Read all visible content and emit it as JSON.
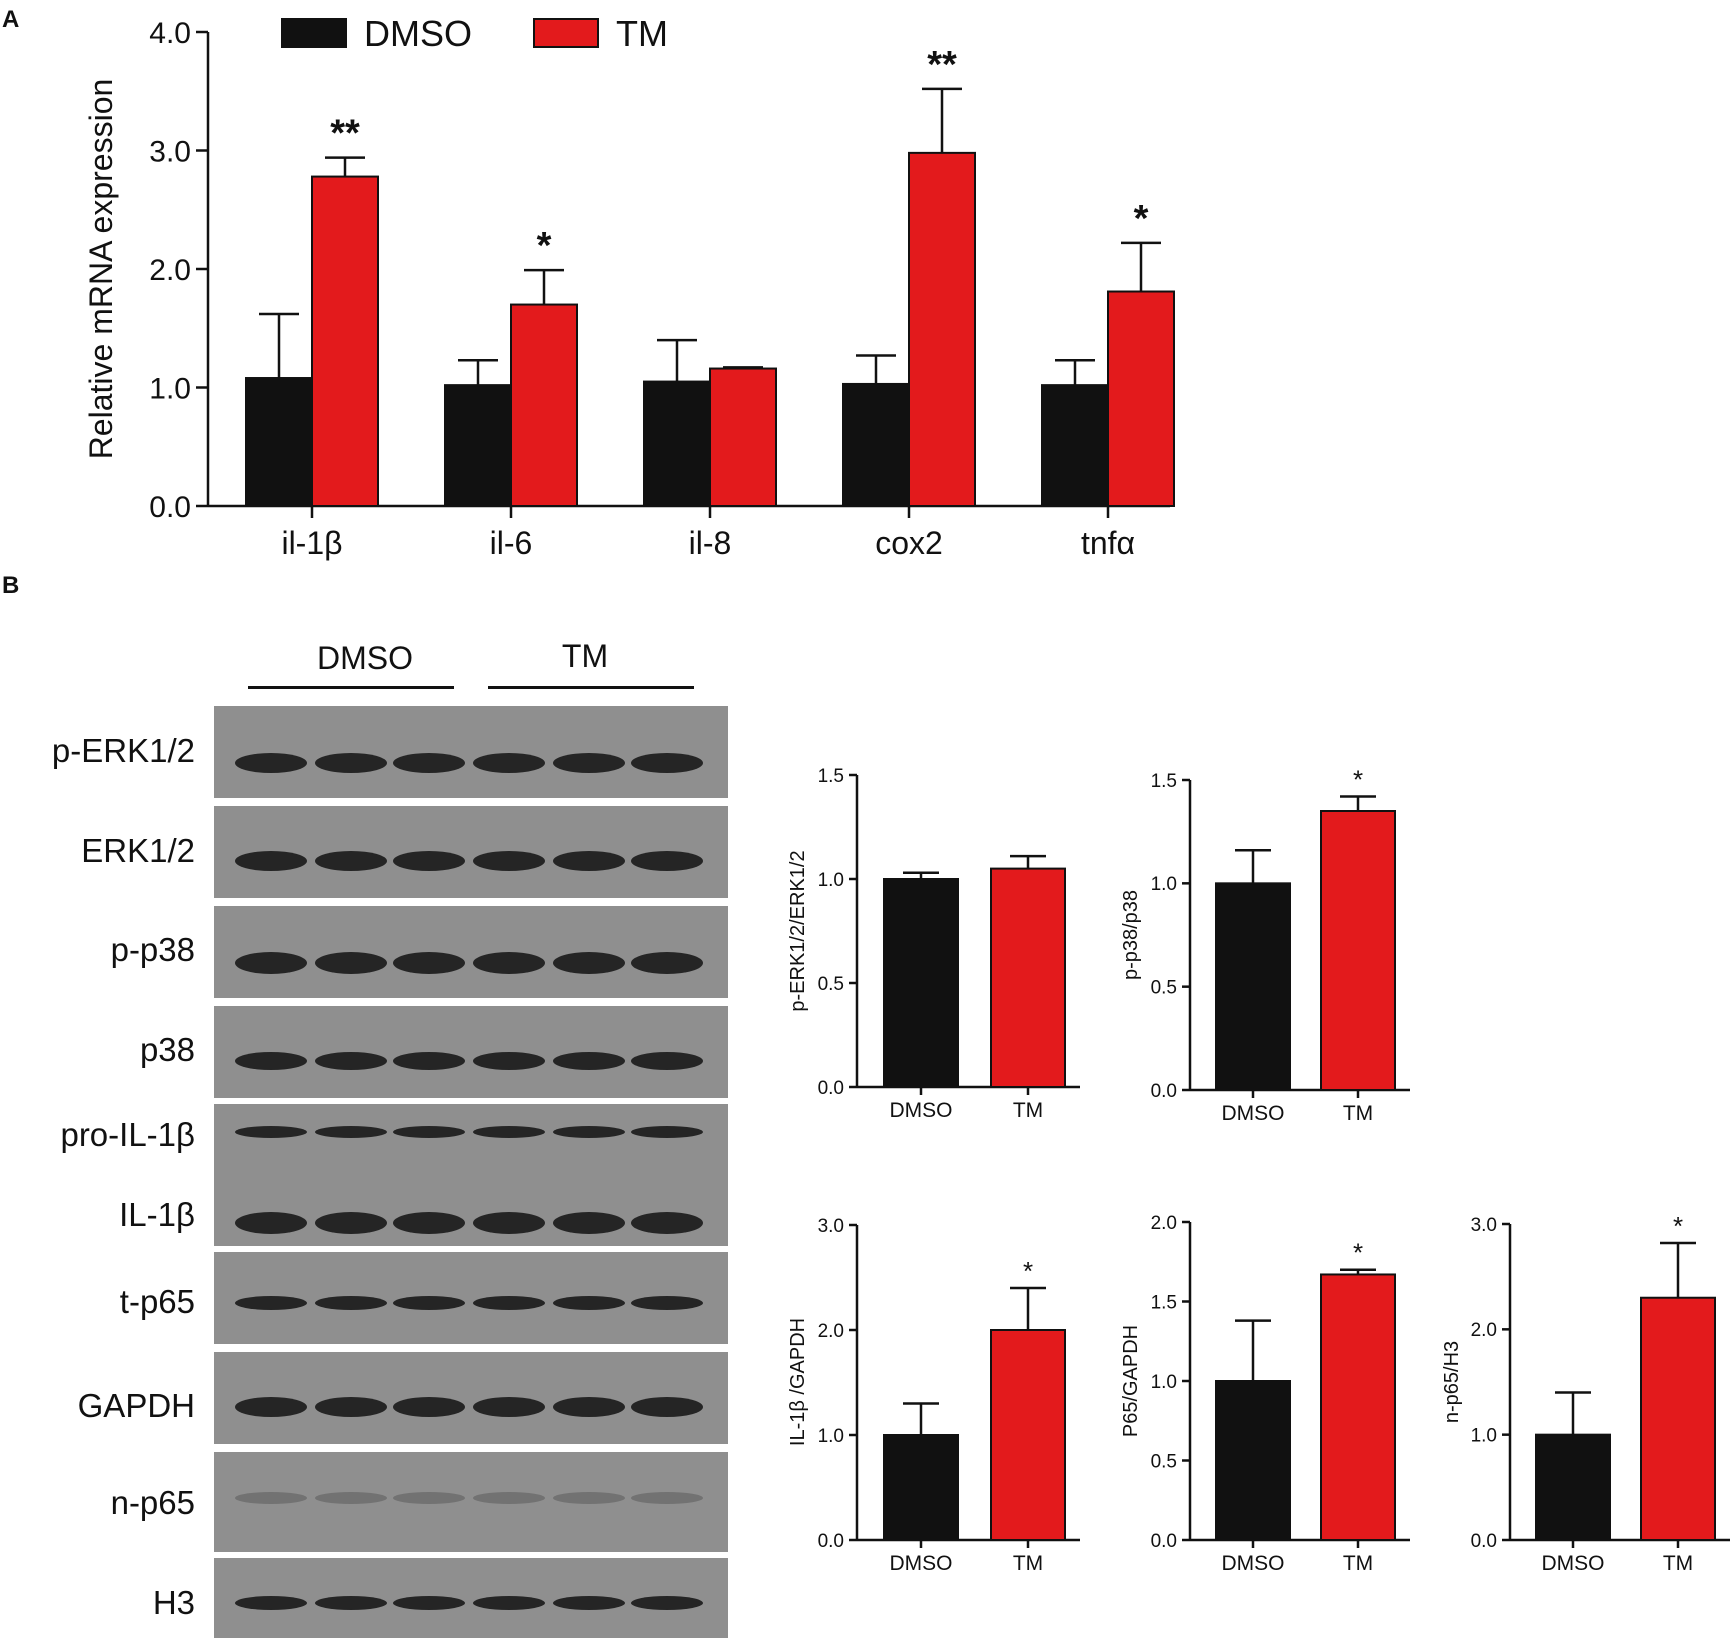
{
  "panel_letters": {
    "a": "A",
    "b": "B"
  },
  "colors": {
    "dmso": "#111111",
    "tm": "#e31a1c",
    "axis": "#111111",
    "blot_bg": "#8f8f8f",
    "band": "#1a1a1a"
  },
  "blot": {
    "groups": [
      "DMSO",
      "TM"
    ],
    "labels": [
      "p-ERK1/2",
      "ERK1/2",
      "p-p38",
      "p38",
      "pro-IL-1β",
      "IL-1β",
      "t-p65",
      "GAPDH",
      "n-p65",
      "H3"
    ]
  },
  "chart_data": [
    {
      "type": "bar",
      "title": "",
      "legend": {
        "position": "top",
        "entries": [
          "DMSO",
          "TM"
        ]
      },
      "categories": [
        "il-1β",
        "il-6",
        "il-8",
        "cox2",
        "tnfα"
      ],
      "series": [
        {
          "name": "DMSO",
          "values": [
            1.08,
            1.02,
            1.05,
            1.03,
            1.02
          ],
          "errors": [
            0.54,
            0.21,
            0.35,
            0.24,
            0.21
          ]
        },
        {
          "name": "TM",
          "values": [
            2.78,
            1.7,
            1.16,
            2.98,
            1.81
          ],
          "errors": [
            0.16,
            0.29,
            0.01,
            0.54,
            0.41
          ]
        }
      ],
      "significance": [
        "**",
        "*",
        "",
        "**",
        "*"
      ],
      "xlabel": "",
      "ylabel": "Relative  mRNA expression",
      "ylim": [
        0,
        4
      ],
      "yticks": [
        "0.0",
        "1.0",
        "2.0",
        "3.0",
        "4.0"
      ],
      "grid": false
    },
    {
      "type": "bar",
      "title": "",
      "categories": [
        "DMSO",
        "TM"
      ],
      "values": [
        1.0,
        1.05
      ],
      "errors": [
        0.03,
        0.06
      ],
      "significance": [
        "",
        ""
      ],
      "ylabel": "p-ERK1/2/ERK1/2",
      "ylim": [
        0,
        1.5
      ],
      "yticks": [
        "0.0",
        "0.5",
        "1.0",
        "1.5"
      ],
      "grid": false
    },
    {
      "type": "bar",
      "title": "",
      "categories": [
        "DMSO",
        "TM"
      ],
      "values": [
        1.0,
        1.35
      ],
      "errors": [
        0.16,
        0.07
      ],
      "significance": [
        "",
        "*"
      ],
      "ylabel": "p-p38/p38",
      "ylim": [
        0,
        1.5
      ],
      "yticks": [
        "0.0",
        "0.5",
        "1.0",
        "1.5"
      ],
      "grid": false
    },
    {
      "type": "bar",
      "title": "",
      "categories": [
        "DMSO",
        "TM"
      ],
      "values": [
        1.0,
        2.0
      ],
      "errors": [
        0.3,
        0.4
      ],
      "significance": [
        "",
        "*"
      ],
      "ylabel": "IL-1β /GAPDH",
      "ylim": [
        0,
        3
      ],
      "yticks": [
        "0.0",
        "1.0",
        "2.0",
        "3.0"
      ],
      "grid": false
    },
    {
      "type": "bar",
      "title": "",
      "categories": [
        "DMSO",
        "TM"
      ],
      "values": [
        1.0,
        1.67
      ],
      "errors": [
        0.38,
        0.03
      ],
      "significance": [
        "",
        "*"
      ],
      "ylabel": "P65/GAPDH",
      "ylim": [
        0,
        2
      ],
      "yticks": [
        "0.0",
        "0.5",
        "1.0",
        "1.5",
        "2.0"
      ],
      "grid": false
    },
    {
      "type": "bar",
      "title": "",
      "categories": [
        "DMSO",
        "TM"
      ],
      "values": [
        1.0,
        2.3
      ],
      "errors": [
        0.4,
        0.52
      ],
      "significance": [
        "",
        "*"
      ],
      "ylabel": "n-p65/H3",
      "ylim": [
        0,
        3
      ],
      "yticks": [
        "0.0",
        "1.0",
        "2.0",
        "3.0"
      ],
      "grid": false
    }
  ]
}
